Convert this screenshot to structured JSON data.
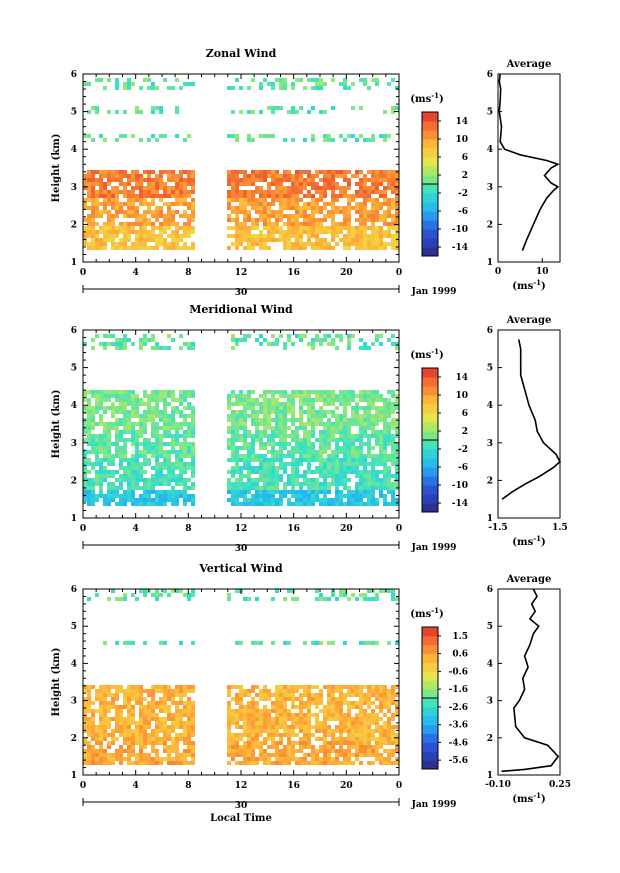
{
  "chart_data": [
    {
      "type": "heatmap",
      "title": "Zonal Wind",
      "ylabel": "Height (km)",
      "ylim": [
        1,
        6
      ],
      "yticks": [
        "1",
        "2",
        "3",
        "4",
        "5",
        "6"
      ],
      "xticks": [
        "0",
        "4",
        "8",
        "12",
        "16",
        "20",
        "0"
      ],
      "date_tick": "30",
      "date_label": "Jan 1999",
      "colorbar": {
        "unit": "(ms⁻¹)",
        "ticks": [
          "14",
          "10",
          "6",
          "2",
          "-2",
          "-6",
          "-10",
          "-14"
        ],
        "range": [
          -16,
          16
        ]
      },
      "coverage": {
        "gap_hours": [
          8.5,
          10.7
        ],
        "solid_layer_km": [
          1.4,
          3.5
        ],
        "upper_bands_km": [
          [
            4.2,
            4.5
          ],
          [
            5.0,
            5.2
          ],
          [
            5.6,
            5.9
          ]
        ]
      },
      "field_example": {
        "bands": [
          [
            1.4,
            2.0,
            8
          ],
          [
            2.0,
            2.8,
            10
          ],
          [
            2.8,
            3.5,
            12
          ]
        ]
      },
      "average_profile": {
        "title": "Average",
        "xlabel": "(ms⁻¹)",
        "xticks": [
          "0",
          "10"
        ],
        "xlim": [
          0,
          14
        ],
        "ylim": [
          1,
          6
        ],
        "x": [
          5.5,
          6.5,
          8.0,
          9.5,
          11.0,
          12.5,
          13.5,
          12.0,
          10.5,
          12.0,
          13.5,
          11.0,
          5.0,
          1.5,
          0.5,
          0.8,
          0.3,
          0.5,
          0.6,
          0.3,
          0.5
        ],
        "y": [
          1.3,
          1.6,
          2.0,
          2.4,
          2.7,
          2.9,
          3.0,
          3.1,
          3.3,
          3.5,
          3.6,
          3.7,
          3.85,
          4.0,
          4.2,
          4.6,
          5.0,
          5.3,
          5.6,
          5.8,
          6.0
        ]
      }
    },
    {
      "type": "heatmap",
      "title": "Meridional Wind",
      "ylabel": "Height (km)",
      "ylim": [
        1,
        6
      ],
      "yticks": [
        "1",
        "2",
        "3",
        "4",
        "5",
        "6"
      ],
      "xticks": [
        "0",
        "4",
        "8",
        "12",
        "16",
        "20",
        "0"
      ],
      "date_tick": "30",
      "date_label": "Jan 1999",
      "colorbar": {
        "unit": "(ms⁻¹)",
        "ticks": [
          "14",
          "10",
          "6",
          "2",
          "-2",
          "-6",
          "-10",
          "-14"
        ],
        "range": [
          -16,
          16
        ]
      },
      "coverage": {
        "gap_hours": [
          8.5,
          10.7
        ],
        "solid_layer_km": [
          1.4,
          4.5
        ],
        "upper_bands_km": [
          [
            5.5,
            5.9
          ]
        ]
      },
      "field_example": {
        "bands": [
          [
            1.4,
            1.8,
            -4
          ],
          [
            1.8,
            2.6,
            -1
          ],
          [
            2.6,
            3.4,
            0
          ],
          [
            3.4,
            4.5,
            1
          ]
        ]
      },
      "average_profile": {
        "title": "Average",
        "xlabel": "(ms⁻¹)",
        "xticks": [
          "-1.5",
          "1.5"
        ],
        "xlim": [
          -1.5,
          1.5
        ],
        "ylim": [
          1,
          6
        ],
        "x": [
          -1.3,
          -0.8,
          -0.2,
          0.5,
          1.2,
          1.5,
          1.3,
          0.7,
          0.4,
          0.3,
          0.0,
          -0.2,
          -0.4,
          -0.4,
          -0.5
        ],
        "y": [
          1.5,
          1.7,
          1.9,
          2.1,
          2.35,
          2.5,
          2.7,
          3.0,
          3.3,
          3.6,
          4.0,
          4.4,
          4.8,
          5.5,
          5.75
        ]
      }
    },
    {
      "type": "heatmap",
      "title": "Vertical Wind",
      "ylabel": "Height (km)",
      "ylim": [
        1,
        6
      ],
      "yticks": [
        "1",
        "2",
        "3",
        "4",
        "5",
        "6"
      ],
      "xticks": [
        "0",
        "4",
        "8",
        "12",
        "16",
        "20",
        "0"
      ],
      "xlabel": "Local Time",
      "date_tick": "30",
      "date_label": "Jan 1999",
      "colorbar": {
        "unit": "(ms⁻¹)",
        "ticks": [
          "1.5",
          "0.6",
          "-0.6",
          "-1.6",
          "-2.6",
          "-3.6",
          "-4.6",
          "-5.6"
        ],
        "range": [
          -6.0,
          2.0
        ]
      },
      "coverage": {
        "gap_hours": [
          8.5,
          10.7
        ],
        "solid_layer_km": [
          1.3,
          3.5
        ],
        "upper_bands_km": [
          [
            4.5,
            4.7
          ],
          [
            5.7,
            6.0
          ]
        ]
      },
      "field_example": {
        "bands": [
          [
            1.3,
            2.0,
            0.4
          ],
          [
            2.0,
            3.5,
            0.2
          ]
        ]
      },
      "average_profile": {
        "title": "Average",
        "xlabel": "(ms⁻¹)",
        "xticks": [
          "-0.10",
          "0.25"
        ],
        "xlim": [
          -0.1,
          0.25
        ],
        "ylim": [
          1,
          6
        ],
        "x": [
          -0.08,
          0.05,
          0.2,
          0.24,
          0.18,
          0.05,
          0.0,
          -0.01,
          0.02,
          0.05,
          0.04,
          0.07,
          0.05,
          0.08,
          0.1,
          0.13,
          0.08,
          0.11,
          0.09,
          0.12,
          0.1
        ],
        "y": [
          1.1,
          1.15,
          1.25,
          1.5,
          1.8,
          2.0,
          2.3,
          2.8,
          3.0,
          3.3,
          3.6,
          3.9,
          4.2,
          4.5,
          4.8,
          5.0,
          5.2,
          5.4,
          5.6,
          5.8,
          6.0
        ]
      }
    }
  ]
}
